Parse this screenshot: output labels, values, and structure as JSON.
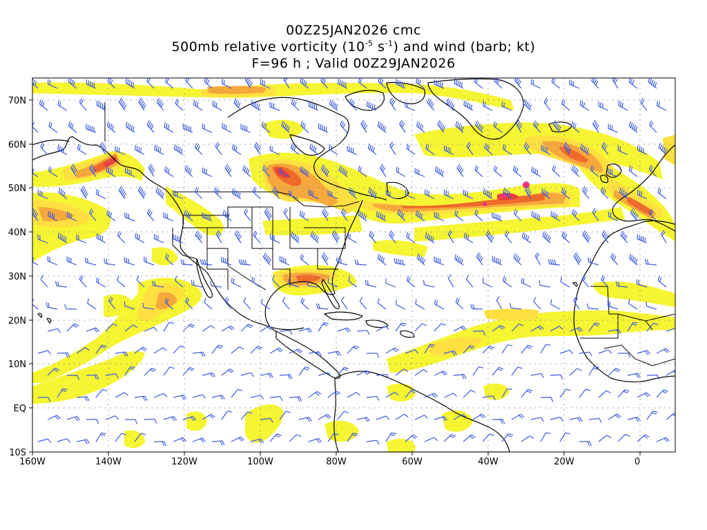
{
  "title": {
    "line1": "00Z25JAN2026 cmc",
    "line2_prefix": "500mb relative vorticity (10",
    "line2_exp1": "-5",
    "line2_mid": " s",
    "line2_exp2": "-1",
    "line2_suffix": ") and wind (barb; kt)",
    "line3": "F=96 h ; Valid 00Z29JAN2026"
  },
  "axes": {
    "lon_labels": [
      "160W",
      "140W",
      "120W",
      "100W",
      "80W",
      "60W",
      "40W",
      "20W",
      "0"
    ],
    "lat_labels": [
      "70N",
      "60N",
      "50N",
      "40N",
      "30N",
      "20N",
      "10N",
      "EQ",
      "10S"
    ]
  },
  "colors": {
    "vort_light": "#f5f532",
    "vort_yellow": "#ffe040",
    "vort_orange": "#f5a83c",
    "vort_dark_orange": "#ee6a2a",
    "vort_red": "#e84040",
    "vort_magenta": "#f0307a",
    "barb": "#3a5ae0",
    "coast": "#000000",
    "grid": "#9a9a9a"
  }
}
